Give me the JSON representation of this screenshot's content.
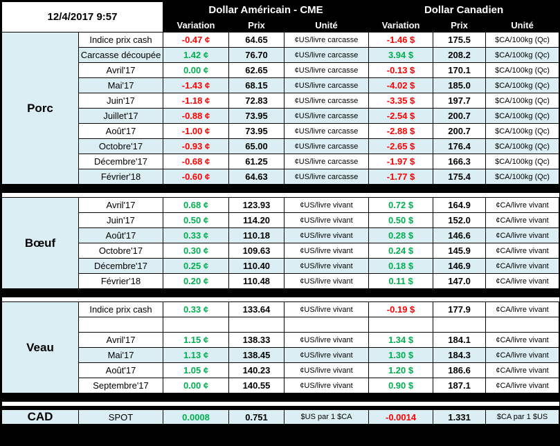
{
  "titlebar": {
    "timestamp": "12/4/2017 9:57"
  },
  "header": {
    "us_title": "Dollar Américain - CME",
    "ca_title": "Dollar Canadien",
    "columns": [
      "Variation",
      "Prix",
      "Unité"
    ]
  },
  "colors": {
    "negative": "#ff0000",
    "positive": "#00b050",
    "band": "#daeef3",
    "header_bg": "#000000",
    "header_text": "#ffffff"
  },
  "sections": [
    {
      "id": "porc",
      "name": "Porc",
      "rows": [
        {
          "label": "Indice prix cash",
          "shaded": false,
          "us": {
            "variation": "-0.47 ¢",
            "prix": "64.65",
            "unite": "¢US/livre carcasse"
          },
          "ca": {
            "variation": "-1.46 $",
            "prix": "175.5",
            "unite": "$CA/100kg (Qc)"
          }
        },
        {
          "label": "Carcasse découpée",
          "shaded": true,
          "us": {
            "variation": "1.42 ¢",
            "prix": "76.70",
            "unite": "¢US/livre carcasse"
          },
          "ca": {
            "variation": "3.94 $",
            "prix": "208.2",
            "unite": "$CA/100kg (Qc)"
          }
        },
        {
          "label": "Avril'17",
          "shaded": false,
          "us": {
            "variation": "0.00 ¢",
            "prix": "62.65",
            "unite": "¢US/livre carcasse"
          },
          "ca": {
            "variation": "-0.13 $",
            "prix": "170.1",
            "unite": "$CA/100kg (Qc)"
          }
        },
        {
          "label": "Mai'17",
          "shaded": true,
          "us": {
            "variation": "-1.43 ¢",
            "prix": "68.15",
            "unite": "¢US/livre carcasse"
          },
          "ca": {
            "variation": "-4.02 $",
            "prix": "185.0",
            "unite": "$CA/100kg (Qc)"
          }
        },
        {
          "label": "Juin'17",
          "shaded": false,
          "us": {
            "variation": "-1.18 ¢",
            "prix": "72.83",
            "unite": "¢US/livre carcasse"
          },
          "ca": {
            "variation": "-3.35 $",
            "prix": "197.7",
            "unite": "$CA/100kg (Qc)"
          }
        },
        {
          "label": "Juillet'17",
          "shaded": true,
          "us": {
            "variation": "-0.88 ¢",
            "prix": "73.95",
            "unite": "¢US/livre carcasse"
          },
          "ca": {
            "variation": "-2.54 $",
            "prix": "200.7",
            "unite": "$CA/100kg (Qc)"
          }
        },
        {
          "label": "Août'17",
          "shaded": false,
          "us": {
            "variation": "-1.00 ¢",
            "prix": "73.95",
            "unite": "¢US/livre carcasse"
          },
          "ca": {
            "variation": "-2.88 $",
            "prix": "200.7",
            "unite": "$CA/100kg (Qc)"
          }
        },
        {
          "label": "Octobre'17",
          "shaded": true,
          "us": {
            "variation": "-0.93 ¢",
            "prix": "65.00",
            "unite": "¢US/livre carcasse"
          },
          "ca": {
            "variation": "-2.65 $",
            "prix": "176.4",
            "unite": "$CA/100kg (Qc)"
          }
        },
        {
          "label": "Décembre'17",
          "shaded": false,
          "us": {
            "variation": "-0.68 ¢",
            "prix": "61.25",
            "unite": "¢US/livre carcasse"
          },
          "ca": {
            "variation": "-1.97 $",
            "prix": "166.3",
            "unite": "$CA/100kg (Qc)"
          }
        },
        {
          "label": "Février'18",
          "shaded": true,
          "us": {
            "variation": "-0.60 ¢",
            "prix": "64.63",
            "unite": "¢US/livre carcasse"
          },
          "ca": {
            "variation": "-1.77 $",
            "prix": "175.4",
            "unite": "$CA/100kg (Qc)"
          }
        }
      ]
    },
    {
      "id": "boeuf",
      "name": "Bœuf",
      "rows": [
        {
          "label": "Avril'17",
          "shaded": false,
          "us": {
            "variation": "0.68 ¢",
            "prix": "123.93",
            "unite": "¢US/livre vivant"
          },
          "ca": {
            "variation": "0.72 $",
            "prix": "164.9",
            "unite": "¢CA/livre vivant"
          }
        },
        {
          "label": "Juin'17",
          "shaded": false,
          "us": {
            "variation": "0.50 ¢",
            "prix": "114.20",
            "unite": "¢US/livre vivant"
          },
          "ca": {
            "variation": "0.50 $",
            "prix": "152.0",
            "unite": "¢CA/livre vivant"
          }
        },
        {
          "label": "Août'17",
          "shaded": true,
          "us": {
            "variation": "0.33 ¢",
            "prix": "110.18",
            "unite": "¢US/livre vivant"
          },
          "ca": {
            "variation": "0.28 $",
            "prix": "146.6",
            "unite": "¢CA/livre vivant"
          }
        },
        {
          "label": "Octobre'17",
          "shaded": false,
          "us": {
            "variation": "0.30 ¢",
            "prix": "109.63",
            "unite": "¢US/livre vivant"
          },
          "ca": {
            "variation": "0.24 $",
            "prix": "145.9",
            "unite": "¢CA/livre vivant"
          }
        },
        {
          "label": "Décembre'17",
          "shaded": true,
          "us": {
            "variation": "0.25 ¢",
            "prix": "110.40",
            "unite": "¢US/livre vivant"
          },
          "ca": {
            "variation": "0.18 $",
            "prix": "146.9",
            "unite": "¢CA/livre vivant"
          }
        },
        {
          "label": "Février'18",
          "shaded": false,
          "us": {
            "variation": "0.20 ¢",
            "prix": "110.48",
            "unite": "¢US/livre vivant"
          },
          "ca": {
            "variation": "0.11 $",
            "prix": "147.0",
            "unite": "¢CA/livre vivant"
          }
        }
      ]
    },
    {
      "id": "veau",
      "name": "Veau",
      "rows": [
        {
          "label": "Indice prix cash",
          "shaded": false,
          "us": {
            "variation": "0.33 ¢",
            "prix": "133.64",
            "unite": "¢US/livre vivant"
          },
          "ca": {
            "variation": "-0.19 $",
            "prix": "177.9",
            "unite": "¢CA/livre vivant"
          }
        },
        {
          "label": "",
          "shaded": false,
          "us": {
            "variation": "",
            "prix": "",
            "unite": ""
          },
          "ca": {
            "variation": "",
            "prix": "",
            "unite": ""
          }
        },
        {
          "label": "Avril'17",
          "shaded": false,
          "us": {
            "variation": "1.15 ¢",
            "prix": "138.33",
            "unite": "¢US/livre vivant"
          },
          "ca": {
            "variation": "1.34 $",
            "prix": "184.1",
            "unite": "¢CA/livre vivant"
          }
        },
        {
          "label": "Mai'17",
          "shaded": true,
          "us": {
            "variation": "1.13 ¢",
            "prix": "138.45",
            "unite": "¢US/livre vivant"
          },
          "ca": {
            "variation": "1.30 $",
            "prix": "184.3",
            "unite": "¢CA/livre vivant"
          }
        },
        {
          "label": "Août'17",
          "shaded": false,
          "us": {
            "variation": "1.05 ¢",
            "prix": "140.23",
            "unite": "¢US/livre vivant"
          },
          "ca": {
            "variation": "1.20 $",
            "prix": "186.6",
            "unite": "¢CA/livre vivant"
          }
        },
        {
          "label": "Septembre'17",
          "shaded": false,
          "us": {
            "variation": "0.00 ¢",
            "prix": "140.55",
            "unite": "¢US/livre vivant"
          },
          "ca": {
            "variation": "0.90 $",
            "prix": "187.1",
            "unite": "¢CA/livre vivant"
          }
        }
      ]
    },
    {
      "id": "cad",
      "name": "CAD",
      "rows": [
        {
          "label": "SPOT",
          "shaded": true,
          "us": {
            "variation": "0.0008",
            "prix": "0.751",
            "unite": "$US par 1 $CA"
          },
          "ca": {
            "variation": "-0.0014",
            "prix": "1.331",
            "unite": "$CA par 1 $US"
          }
        }
      ]
    }
  ]
}
